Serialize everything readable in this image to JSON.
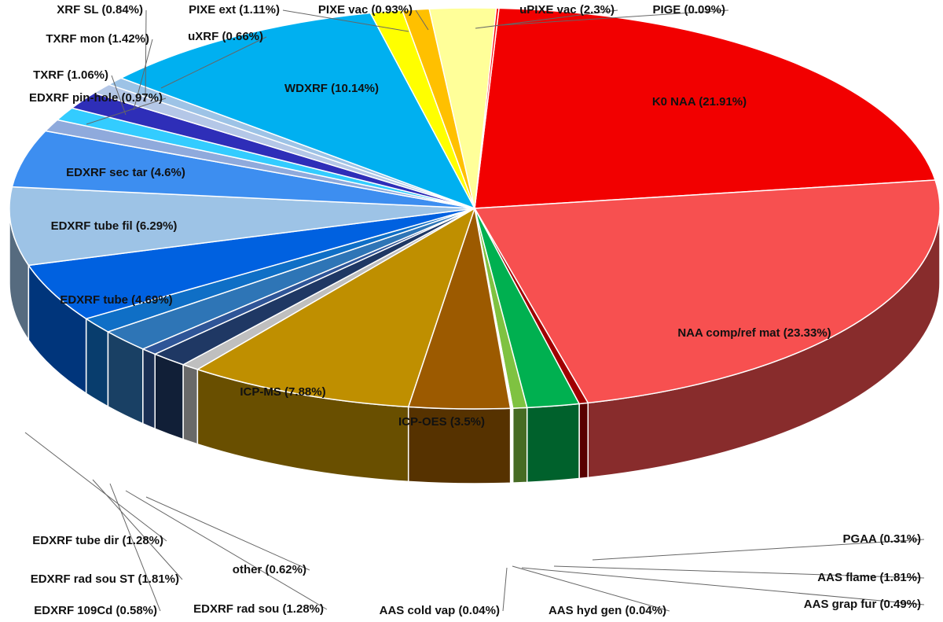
{
  "chart_data": {
    "type": "pie",
    "style": "3d-exploded-none",
    "title": "",
    "slices": [
      {
        "name": "K0 NAA",
        "value": 21.91,
        "color": "#f20000"
      },
      {
        "name": "NAA comp/ref mat",
        "value": 23.33,
        "color": "#f75050"
      },
      {
        "name": "PGAA",
        "value": 0.31,
        "color": "#a00000"
      },
      {
        "name": "AAS flame",
        "value": 1.81,
        "color": "#00b050"
      },
      {
        "name": "AAS grap fur",
        "value": 0.49,
        "color": "#7fc241"
      },
      {
        "name": "AAS hyd gen",
        "value": 0.04,
        "color": "#a9d08e"
      },
      {
        "name": "AAS cold vap",
        "value": 0.04,
        "color": "#c6e0b4"
      },
      {
        "name": "ICP-OES",
        "value": 3.5,
        "color": "#9c5a00"
      },
      {
        "name": "ICP-MS",
        "value": 7.88,
        "color": "#bf8f00"
      },
      {
        "name": "other",
        "value": 0.62,
        "color": "#bfbfbf"
      },
      {
        "name": "EDXRF rad sou",
        "value": 1.28,
        "color": "#1f3864"
      },
      {
        "name": "EDXRF 109Cd",
        "value": 0.58,
        "color": "#2f5597"
      },
      {
        "name": "EDXRF rad sou ST",
        "value": 1.81,
        "color": "#2e75b6"
      },
      {
        "name": "EDXRF tube dir",
        "value": 1.28,
        "color": "#0f6fc6"
      },
      {
        "name": "EDXRF tube",
        "value": 4.69,
        "color": "#0061e0"
      },
      {
        "name": "EDXRF tube fil",
        "value": 6.29,
        "color": "#9dc3e6"
      },
      {
        "name": "EDXRF sec tar",
        "value": 4.6,
        "color": "#3d8ef0"
      },
      {
        "name": "EDXRF pin-hole",
        "value": 0.97,
        "color": "#8faadc"
      },
      {
        "name": "TXRF",
        "value": 1.06,
        "color": "#33ccff"
      },
      {
        "name": "TXRF mon",
        "value": 1.42,
        "color": "#2e2eb8"
      },
      {
        "name": "XRF SL",
        "value": 0.84,
        "color": "#b4c7e7"
      },
      {
        "name": "uXRF",
        "value": 0.66,
        "color": "#9dc3e6"
      },
      {
        "name": "WDXRF",
        "value": 10.14,
        "color": "#00b0f0"
      },
      {
        "name": "PIXE ext",
        "value": 1.11,
        "color": "#ffff00"
      },
      {
        "name": "PIXE vac",
        "value": 0.93,
        "color": "#ffc000"
      },
      {
        "name": "uPIXE vac",
        "value": 2.3,
        "color": "#ffff99"
      },
      {
        "name": "PIGE",
        "value": 0.09,
        "color": "#ff0000"
      }
    ],
    "labels": [
      "K0 NAA (21.91%)",
      "NAA comp/ref mat (23.33%)",
      "PGAA (0.31%)",
      "AAS flame (1.81%)",
      "AAS grap fur (0.49%)",
      "AAS hyd gen (0.04%)",
      "AAS cold vap (0.04%)",
      "ICP-OES (3.5%)",
      "ICP-MS (7.88%)",
      "other (0.62%)",
      "EDXRF rad sou (1.28%)",
      "EDXRF 109Cd (0.58%)",
      "EDXRF rad sou ST (1.81%)",
      "EDXRF tube dir (1.28%)",
      "EDXRF tube (4.69%)",
      "EDXRF tube fil (6.29%)",
      "EDXRF sec tar (4.6%)",
      "EDXRF pin-hole (0.97%)",
      "TXRF (1.06%)",
      "TXRF mon (1.42%)",
      "XRF SL (0.84%)",
      "uXRF (0.66%)",
      "WDXRF (10.14%)",
      "PIXE ext (1.11%)",
      "PIXE vac (0.93%)",
      "uPIXE vac (2.3%)",
      "PIGE (0.09%)"
    ]
  }
}
